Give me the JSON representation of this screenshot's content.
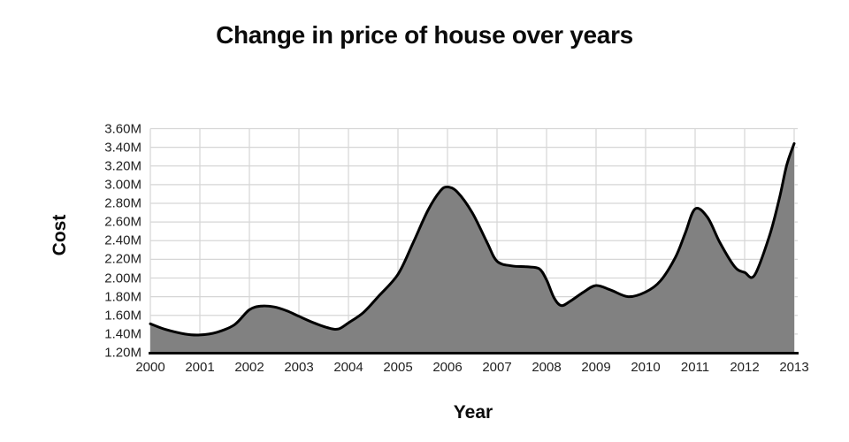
{
  "title": "Change in price of house over years",
  "chart_data": {
    "type": "area",
    "title": "Change in price of house over years",
    "xlabel": "Year",
    "ylabel": "Cost",
    "categories": [
      2000,
      2001,
      2002,
      2003,
      2004,
      2005,
      2006,
      2007,
      2008,
      2009,
      2010,
      2011,
      2012,
      2013
    ],
    "values": [
      1.5,
      1.4,
      1.66,
      1.59,
      1.52,
      2.04,
      2.97,
      2.18,
      2.0,
      1.92,
      1.85,
      2.73,
      2.06,
      3.44
    ],
    "x_tick_labels": [
      "2000",
      "2001",
      "2002",
      "2003",
      "2004",
      "2005",
      "2006",
      "2007",
      "2008",
      "2009",
      "2010",
      "2011",
      "2012",
      "2013"
    ],
    "y_tick_labels": [
      "3.60M",
      "3.40M",
      "3.20M",
      "3.00M",
      "2.80M",
      "2.60M",
      "2.40M",
      "2.20M",
      "2.00M",
      "1.80M",
      "1.60M",
      "1.40M",
      "1.20M"
    ],
    "y_tick_values": [
      3.6,
      3.4,
      3.2,
      3.0,
      2.8,
      2.6,
      2.4,
      2.2,
      2.0,
      1.8,
      1.6,
      1.4,
      1.2
    ],
    "xlim": [
      2000,
      2013
    ],
    "ylim": [
      1.2,
      3.6
    ],
    "grid": true,
    "legend": false,
    "curve_points": [
      [
        2000.0,
        1.51
      ],
      [
        2000.3,
        1.45
      ],
      [
        2000.7,
        1.4
      ],
      [
        2001.0,
        1.39
      ],
      [
        2001.35,
        1.42
      ],
      [
        2001.7,
        1.5
      ],
      [
        2002.0,
        1.66
      ],
      [
        2002.25,
        1.7
      ],
      [
        2002.5,
        1.69
      ],
      [
        2002.75,
        1.65
      ],
      [
        2003.0,
        1.59
      ],
      [
        2003.3,
        1.52
      ],
      [
        2003.6,
        1.465
      ],
      [
        2003.8,
        1.455
      ],
      [
        2004.0,
        1.52
      ],
      [
        2004.3,
        1.63
      ],
      [
        2004.6,
        1.8
      ],
      [
        2005.0,
        2.04
      ],
      [
        2005.3,
        2.37
      ],
      [
        2005.6,
        2.72
      ],
      [
        2005.85,
        2.93
      ],
      [
        2006.0,
        2.975
      ],
      [
        2006.2,
        2.92
      ],
      [
        2006.5,
        2.7
      ],
      [
        2006.8,
        2.38
      ],
      [
        2007.0,
        2.18
      ],
      [
        2007.3,
        2.13
      ],
      [
        2007.6,
        2.12
      ],
      [
        2007.85,
        2.1
      ],
      [
        2008.0,
        1.98
      ],
      [
        2008.15,
        1.79
      ],
      [
        2008.3,
        1.705
      ],
      [
        2008.5,
        1.76
      ],
      [
        2008.75,
        1.85
      ],
      [
        2009.0,
        1.92
      ],
      [
        2009.3,
        1.87
      ],
      [
        2009.65,
        1.8
      ],
      [
        2010.0,
        1.85
      ],
      [
        2010.3,
        1.97
      ],
      [
        2010.6,
        2.22
      ],
      [
        2010.8,
        2.48
      ],
      [
        2011.0,
        2.74
      ],
      [
        2011.25,
        2.65
      ],
      [
        2011.5,
        2.38
      ],
      [
        2011.8,
        2.12
      ],
      [
        2012.0,
        2.06
      ],
      [
        2012.2,
        2.03
      ],
      [
        2012.5,
        2.45
      ],
      [
        2012.7,
        2.85
      ],
      [
        2012.85,
        3.21
      ],
      [
        2013.0,
        3.44
      ]
    ],
    "colors": {
      "fill": "#818181",
      "stroke": "#000000",
      "grid": "#d6d6d6",
      "axis": "#000000",
      "tick_text": "#222222",
      "title_text": "#0b0b0b"
    }
  }
}
